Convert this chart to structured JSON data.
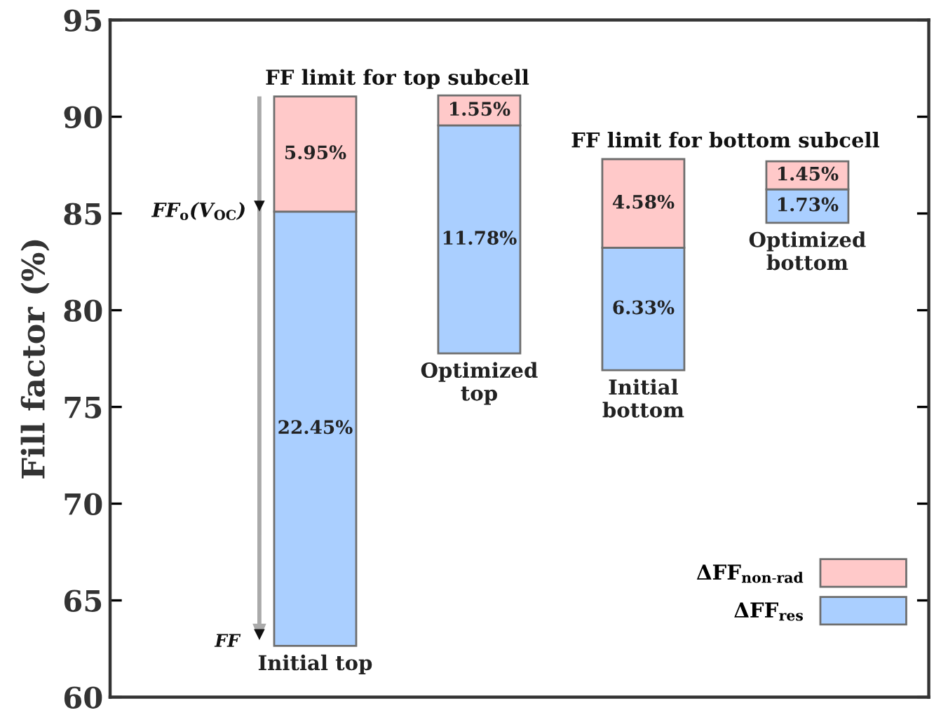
{
  "chart_data": {
    "type": "bar",
    "ylabel": "Fill factor (%)",
    "categories": [
      null,
      null,
      null,
      null
    ],
    "series": [
      {
        "name": "ΔFF$_{res}$",
        "color": "#aacfff",
        "base": [
          62.65,
          77.77,
          76.9,
          84.52
        ],
        "values": [
          22.45,
          11.78,
          6.33,
          1.73
        ],
        "value_labels": [
          "22.45%",
          "11.78%",
          "6.33%",
          "1.73%"
        ]
      },
      {
        "name": "ΔFF$_{non-rad}$",
        "color": "#ffc9c9",
        "base": [
          85.1,
          89.55,
          83.23,
          86.25
        ],
        "values": [
          5.95,
          1.55,
          4.58,
          1.45
        ],
        "value_labels": [
          "5.95%",
          "1.55%",
          "4.58%",
          "1.45%"
        ]
      }
    ],
    "ylim": [
      60,
      95
    ],
    "yticks": [
      60,
      65,
      70,
      75,
      80,
      85,
      90,
      95
    ],
    "tick_labels": "y",
    "grid": false,
    "legend": "bottom right",
    "annotations": [
      "FF limit for top subcell",
      "FF limit for bottom subcell",
      "FF$_{o}$(V$_{OC}$)",
      "FF",
      "Initial top",
      "Optimized\ntop",
      "Initial\nbottom",
      "Optimized\nbottom"
    ]
  }
}
